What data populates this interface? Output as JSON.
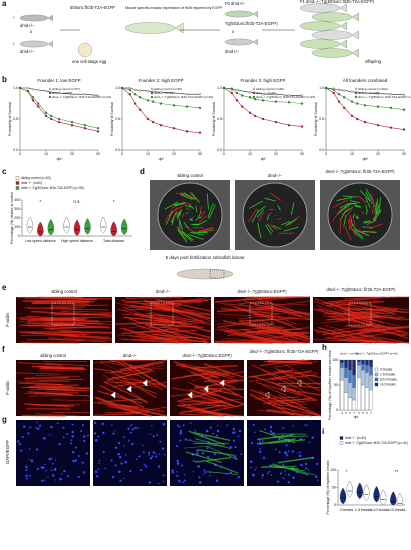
{
  "panel_labels": [
    "a",
    "b",
    "c",
    "d",
    "e",
    "f",
    "g",
    "h",
    "i"
  ],
  "panel_a": [
    "♂",
    "dmd+/−",
    "x",
    "♀",
    "dmd+/−",
    "503unc:flr2b-T2A-EGFP",
    "one cell-stage egg",
    "Muscle specific mosaic expression of flr2b reported by EGFP",
    "F0 dmd+/−",
    "Tg(503unc:flr2b-T2A-EGFP)",
    "x",
    "dmd+/−",
    "F1 dmd−/−;Tg(503unc:flr2b-T2A-EGFP)",
    "offspring"
  ],
  "panel_d": [
    "sibling control",
    "dmd−/−",
    "dmd−/−;Tg(503unc: flr2b-T2A-EGFP)"
  ],
  "larva_title": "5 days post fertilization zebrafish larvae",
  "panel_e": {
    "columns": [
      "sibling control",
      "dmd−/−",
      "dmd−/−;Tg(503unc:EGFP)",
      "dmd−/−;Tg(503unc: flr2b-T2A-EGFP)"
    ],
    "stain": "F-actin"
  },
  "panel_f": {
    "columns": [
      "sibling control",
      "dmd−/−",
      "dmd−/−;Tg(503unc:EGFP)",
      "dmd−/−;Tg(503unc: flr2b-T2A-EGFP)"
    ],
    "stain": "F-actin"
  },
  "panel_g": {
    "stain": "DAPI/EGFP"
  },
  "chart_data": [
    {
      "type": "line",
      "title": "Founder 1: low EGFP",
      "xlabel": "dpf",
      "ylabel": "Probability of Survival",
      "x": [
        0,
        3,
        5,
        7,
        10,
        12,
        15,
        20,
        25,
        30
      ],
      "xlim": [
        0,
        30
      ],
      "xticks": [
        0,
        10,
        20,
        30
      ],
      "ylim": [
        0,
        1
      ],
      "yticks": [
        {
          "value": 0,
          "label": "0.0"
        },
        {
          "value": 0.5,
          "label": "0.5"
        },
        {
          "value": 1,
          "label": "1.0"
        }
      ],
      "series": [
        {
          "name": "sibling control (n=57)",
          "color": "#ffffff",
          "values": [
            1,
            1,
            0.98,
            0.97,
            0.95,
            0.93,
            0.92,
            0.9,
            0.9,
            0.88
          ]
        },
        {
          "name": "dmd−/− (n=58)",
          "color": "#c0202a",
          "values": [
            1,
            0.95,
            0.8,
            0.7,
            0.55,
            0.5,
            0.45,
            0.4,
            0.35,
            0.3
          ]
        },
        {
          "name": "dmd−/−;Tg(503unc: flr2b-T2A-EGFP) (n=21)",
          "color": "#3aa23a",
          "values": [
            1,
            0.95,
            0.85,
            0.75,
            0.6,
            0.55,
            0.5,
            0.45,
            0.4,
            0.35
          ]
        }
      ]
    },
    {
      "type": "line",
      "title": "Founder 2: high EGFP",
      "xlabel": "dpf",
      "ylabel": "Probability of Survival",
      "x": [
        0,
        3,
        5,
        7,
        10,
        12,
        15,
        20,
        25,
        30
      ],
      "xlim": [
        0,
        30
      ],
      "xticks": [
        0,
        10,
        20,
        30
      ],
      "ylim": [
        0,
        1
      ],
      "yticks": [
        {
          "value": 0,
          "label": "0.0"
        },
        {
          "value": 0.5,
          "label": "0.5"
        },
        {
          "value": 1,
          "label": "1.0"
        }
      ],
      "series": [
        {
          "name": "sibling control (n=36)",
          "color": "#ffffff",
          "values": [
            1,
            1,
            0.97,
            0.96,
            0.95,
            0.94,
            0.93,
            0.92,
            0.9,
            0.9
          ]
        },
        {
          "name": "dmd−/− (n=30)",
          "color": "#c0202a",
          "values": [
            1,
            0.9,
            0.75,
            0.65,
            0.5,
            0.45,
            0.4,
            0.35,
            0.3,
            0.28
          ]
        },
        {
          "name": "dmd−/−;Tg(503unc: flr2b-T2A-EGFP) (n=22)",
          "color": "#3aa23a",
          "values": [
            1,
            0.97,
            0.9,
            0.85,
            0.8,
            0.78,
            0.75,
            0.72,
            0.7,
            0.68
          ]
        }
      ]
    },
    {
      "type": "line",
      "title": "Founder 3: high EGFP",
      "xlabel": "dpf",
      "ylabel": "Probability of Survival",
      "x": [
        0,
        3,
        5,
        7,
        10,
        12,
        15,
        20,
        25,
        30
      ],
      "xlim": [
        0,
        30
      ],
      "xticks": [
        0,
        10,
        20,
        30
      ],
      "ylim": [
        0,
        1
      ],
      "yticks": [
        {
          "value": 0,
          "label": "0.0"
        },
        {
          "value": 0.5,
          "label": "0.5"
        },
        {
          "value": 1,
          "label": "1.0"
        }
      ],
      "series": [
        {
          "name": "sibling control (n=60)",
          "color": "#ffffff",
          "values": [
            1,
            0.99,
            0.97,
            0.95,
            0.93,
            0.92,
            0.9,
            0.9,
            0.88,
            0.88
          ]
        },
        {
          "name": "dmd−/− (n=40)",
          "color": "#c0202a",
          "values": [
            1,
            0.92,
            0.8,
            0.7,
            0.6,
            0.55,
            0.5,
            0.45,
            0.4,
            0.38
          ]
        },
        {
          "name": "dmd−/−;Tg(503unc: flr2b-T2A-EGFP) (n=22)",
          "color": "#3aa23a",
          "values": [
            1,
            0.98,
            0.92,
            0.88,
            0.85,
            0.82,
            0.8,
            0.78,
            0.77,
            0.75
          ]
        }
      ]
    },
    {
      "type": "line",
      "title": "All founders combined",
      "xlabel": "dpf",
      "ylabel": "Probability of Survival",
      "x": [
        0,
        3,
        5,
        7,
        10,
        12,
        15,
        20,
        25,
        30
      ],
      "xlim": [
        0,
        30
      ],
      "xticks": [
        0,
        10,
        20,
        30
      ],
      "ylim": [
        0,
        1
      ],
      "yticks": [
        {
          "value": 0,
          "label": "0.0"
        },
        {
          "value": 0.5,
          "label": "0.5"
        },
        {
          "value": 1,
          "label": "1.0"
        }
      ],
      "series": [
        {
          "name": "sibling control (n=153)",
          "color": "#ffffff",
          "values": [
            1,
            0.99,
            0.97,
            0.96,
            0.94,
            0.93,
            0.92,
            0.91,
            0.9,
            0.89
          ]
        },
        {
          "name": "dmd−/− (n=128)",
          "color": "#c0202a",
          "values": [
            1,
            0.92,
            0.78,
            0.68,
            0.55,
            0.5,
            0.45,
            0.4,
            0.36,
            0.33
          ]
        },
        {
          "name": "dmd−/−;Tg(503unc: flr2b-T2A-EGFP) (n=65)",
          "color": "#3aa23a",
          "values": [
            1,
            0.97,
            0.9,
            0.85,
            0.78,
            0.75,
            0.72,
            0.7,
            0.68,
            0.65
          ]
        }
      ]
    },
    {
      "type": "violin",
      "ylabel": "Percentage (%) relative to control",
      "categories": [
        "Low speed distance",
        "High speed distance",
        "Total distance"
      ],
      "ylim": [
        0,
        400
      ],
      "yticks": [
        0,
        100,
        200,
        300,
        400
      ],
      "annotations": [
        "*",
        "n.s.",
        "*"
      ],
      "series": [
        {
          "name": "sibling control (n=60)",
          "color": "#ffffff",
          "values": [
            100,
            100,
            100
          ]
        },
        {
          "name": "dmd−/− (n=60)",
          "color": "#c0202a",
          "values": [
            45,
            70,
            50
          ]
        },
        {
          "name": "dmd−/−;Tg(503unc: flr2b-T2A-EGFP) (n=56)",
          "color": "#3aa23a",
          "values": [
            75,
            85,
            80
          ]
        }
      ]
    },
    {
      "type": "stacked_bar",
      "ylabel": "Percentage (%) of myofiber breaks over time",
      "xlabel": "dpf",
      "groups": [
        "dmd−/− (n=40)",
        "dmd−/−;Tg(503unc:EGFP) (n=41)"
      ],
      "categories": [
        "3",
        "5",
        "6",
        "7",
        "3",
        "5",
        "6",
        "7"
      ],
      "ylim": [
        0,
        100
      ],
      "yticks": [
        0,
        50,
        100
      ],
      "series": [
        {
          "name": "0 breaks",
          "color": "#ffffff",
          "values": [
            60,
            35,
            25,
            20,
            65,
            50,
            45,
            40
          ]
        },
        {
          "name": "1-5 breaks",
          "color": "#a9c4e6",
          "values": [
            25,
            30,
            30,
            25,
            25,
            30,
            30,
            30
          ]
        },
        {
          "name": "6-10 breaks",
          "color": "#4a78c0",
          "values": [
            10,
            20,
            25,
            25,
            7,
            12,
            15,
            17
          ]
        },
        {
          "name": ">10 breaks",
          "color": "#1a2a78",
          "values": [
            5,
            15,
            20,
            30,
            3,
            8,
            10,
            13
          ]
        }
      ]
    },
    {
      "type": "violin",
      "ylabel": "Percentage (%) of myofiber breaks",
      "categories": [
        "0 breaks",
        "1-5 breaks",
        "6-10 breaks",
        ">10 breaks"
      ],
      "ylim": [
        0,
        100
      ],
      "yticks": [
        0,
        50,
        100
      ],
      "annotations": [
        "*",
        "**"
      ],
      "series": [
        {
          "name": "dmd−/− (n=40)",
          "color": "#1a2a78",
          "values": [
            20,
            35,
            25,
            10
          ]
        },
        {
          "name": "dmd−/−;Tg(503unc: flr2b-T2A-EGFP) (n=41)",
          "color": "#ffffff",
          "values": [
            40,
            30,
            15,
            5
          ]
        }
      ]
    }
  ]
}
